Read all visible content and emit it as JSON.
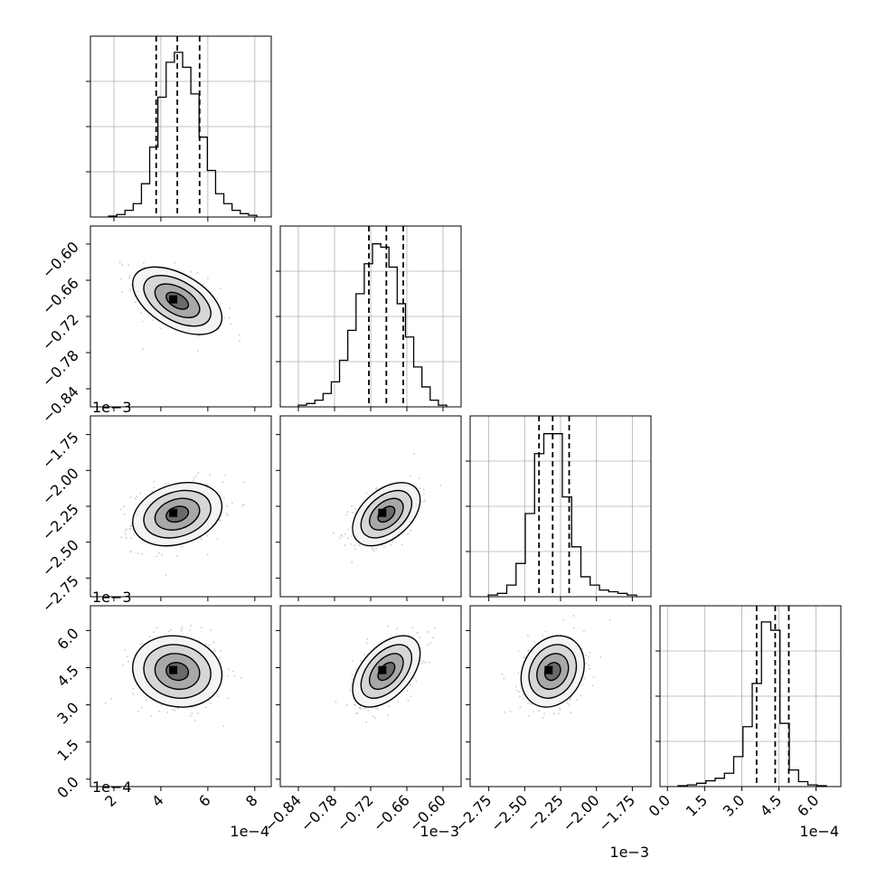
{
  "chart_data": {
    "type": "corner",
    "parameters": [
      {
        "range": [
          1.0,
          8.7
        ],
        "ticks": [
          2,
          4,
          6,
          8
        ],
        "tick_labels": [
          "2",
          "4",
          "6",
          "8"
        ],
        "offset_label": "1e−4"
      },
      {
        "range": [
          -0.87,
          -0.57
        ],
        "ticks": [
          -0.84,
          -0.78,
          -0.72,
          -0.66,
          -0.6
        ],
        "tick_labels": [
          "−0.84",
          "−0.78",
          "−0.72",
          "−0.66",
          "−0.60"
        ],
        "offset_label": "1e−3"
      },
      {
        "range": [
          -2.88,
          -1.62
        ],
        "ticks": [
          -2.75,
          -2.5,
          -2.25,
          -2.0,
          -1.75
        ],
        "tick_labels": [
          "−2.75",
          "−2.50",
          "−2.25",
          "−2.00",
          "−1.75"
        ],
        "offset_label": "1e−3"
      },
      {
        "range": [
          -0.3,
          7.0
        ],
        "ticks": [
          0.0,
          1.5,
          3.0,
          4.5,
          6.0
        ],
        "tick_labels": [
          "0.0",
          "1.5",
          "3.0",
          "4.5",
          "6.0"
        ],
        "offset_label": "1e−4"
      }
    ],
    "quantile_lines": [
      [
        3.8,
        4.7,
        5.65
      ],
      [
        -0.723,
        -0.694,
        -0.666
      ],
      [
        -2.4,
        -2.305,
        -2.19
      ],
      [
        3.6,
        4.35,
        4.9
      ]
    ],
    "histograms": [
      [
        0.005,
        0.015,
        0.04,
        0.08,
        0.2,
        0.42,
        0.72,
        0.93,
        0.99,
        0.9,
        0.74,
        0.48,
        0.28,
        0.14,
        0.08,
        0.04,
        0.02,
        0.01
      ],
      [
        0.01,
        0.02,
        0.04,
        0.08,
        0.15,
        0.28,
        0.46,
        0.68,
        0.86,
        0.98,
        0.96,
        0.84,
        0.62,
        0.42,
        0.24,
        0.12,
        0.04,
        0.01
      ],
      [
        0.01,
        0.02,
        0.07,
        0.2,
        0.5,
        0.86,
        0.98,
        0.98,
        0.6,
        0.3,
        0.12,
        0.07,
        0.04,
        0.03,
        0.02,
        0.01
      ],
      [
        0.005,
        0.01,
        0.02,
        0.035,
        0.05,
        0.08,
        0.18,
        0.36,
        0.62,
        0.99,
        0.94,
        0.38,
        0.1,
        0.03,
        0.01,
        0.005
      ]
    ],
    "grid": true,
    "colors": {
      "line": "#000000",
      "scatter": "#b4b4b4",
      "grid": "#b0b0b0"
    }
  }
}
